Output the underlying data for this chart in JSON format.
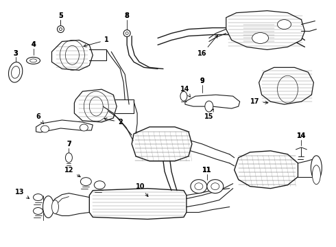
{
  "bg_color": "#ffffff",
  "line_color": "#1a1a1a",
  "fig_width": 4.9,
  "fig_height": 3.6,
  "dpi": 100,
  "label_fontsize": 7.0,
  "label_fontsize_small": 6.5
}
